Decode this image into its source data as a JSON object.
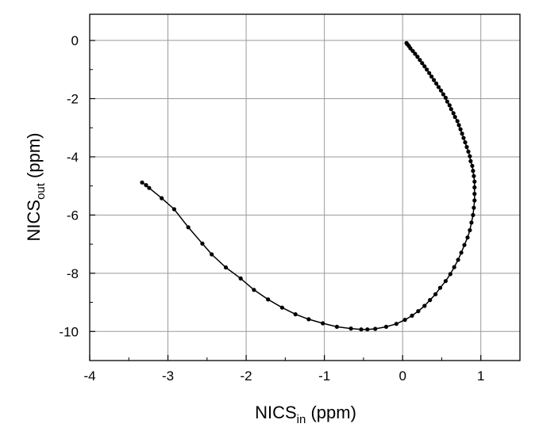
{
  "chart_data": {
    "type": "scatter",
    "title": "",
    "xlabel": {
      "main": "NICS",
      "sub": "in",
      "unit": " (ppm)"
    },
    "ylabel": {
      "main": "NICS",
      "sub": "out",
      "unit": " (ppm)"
    },
    "xlim": [
      -4,
      1.5
    ],
    "ylim": [
      -11,
      0.9
    ],
    "xticks": [
      -4,
      -3,
      -2,
      -1,
      0,
      1
    ],
    "xtick_labels": [
      "-4",
      "-3",
      "-2",
      "-1",
      "0",
      "1"
    ],
    "yticks": [
      0,
      -2,
      -4,
      -6,
      -8,
      -10
    ],
    "ytick_labels": [
      "0",
      "-2",
      "-4",
      "-6",
      "-8",
      "-10"
    ],
    "grid": true,
    "series": [
      {
        "marker": "circle",
        "line": true,
        "color": "#000000",
        "points": [
          [
            -3.33,
            -4.88
          ],
          [
            -3.28,
            -4.97
          ],
          [
            -3.24,
            -5.07
          ],
          [
            -3.08,
            -5.42
          ],
          [
            -2.92,
            -5.8
          ],
          [
            -2.74,
            -6.42
          ],
          [
            -2.56,
            -6.98
          ],
          [
            -2.44,
            -7.35
          ],
          [
            -2.26,
            -7.8
          ],
          [
            -2.07,
            -8.18
          ],
          [
            -1.9,
            -8.57
          ],
          [
            -1.72,
            -8.9
          ],
          [
            -1.54,
            -9.18
          ],
          [
            -1.37,
            -9.41
          ],
          [
            -1.2,
            -9.58
          ],
          [
            -1.02,
            -9.72
          ],
          [
            -0.84,
            -9.84
          ],
          [
            -0.66,
            -9.9
          ],
          [
            -0.53,
            -9.93
          ],
          [
            -0.45,
            -9.93
          ],
          [
            -0.35,
            -9.91
          ],
          [
            -0.21,
            -9.84
          ],
          [
            -0.08,
            -9.74
          ],
          [
            0.03,
            -9.6
          ],
          [
            0.12,
            -9.46
          ],
          [
            0.2,
            -9.3
          ],
          [
            0.28,
            -9.12
          ],
          [
            0.35,
            -8.92
          ],
          [
            0.42,
            -8.72
          ],
          [
            0.48,
            -8.5
          ],
          [
            0.55,
            -8.27
          ],
          [
            0.61,
            -8.03
          ],
          [
            0.66,
            -7.79
          ],
          [
            0.71,
            -7.54
          ],
          [
            0.75,
            -7.29
          ],
          [
            0.79,
            -7.03
          ],
          [
            0.83,
            -6.77
          ],
          [
            0.86,
            -6.52
          ],
          [
            0.88,
            -6.26
          ],
          [
            0.9,
            -6.0
          ],
          [
            0.91,
            -5.75
          ],
          [
            0.92,
            -5.5
          ],
          [
            0.92,
            -5.27
          ],
          [
            0.92,
            -5.05
          ],
          [
            0.92,
            -4.85
          ],
          [
            0.91,
            -4.66
          ],
          [
            0.9,
            -4.48
          ],
          [
            0.89,
            -4.31
          ],
          [
            0.87,
            -4.15
          ],
          [
            0.86,
            -3.98
          ],
          [
            0.84,
            -3.82
          ],
          [
            0.82,
            -3.66
          ],
          [
            0.8,
            -3.5
          ],
          [
            0.78,
            -3.35
          ],
          [
            0.76,
            -3.2
          ],
          [
            0.74,
            -3.05
          ],
          [
            0.72,
            -2.91
          ],
          [
            0.7,
            -2.77
          ],
          [
            0.67,
            -2.63
          ],
          [
            0.65,
            -2.5
          ],
          [
            0.62,
            -2.36
          ],
          [
            0.6,
            -2.23
          ],
          [
            0.57,
            -2.1
          ],
          [
            0.55,
            -1.97
          ],
          [
            0.52,
            -1.85
          ],
          [
            0.49,
            -1.72
          ],
          [
            0.46,
            -1.6
          ],
          [
            0.43,
            -1.48
          ],
          [
            0.4,
            -1.36
          ],
          [
            0.37,
            -1.24
          ],
          [
            0.34,
            -1.12
          ],
          [
            0.31,
            -1.0
          ],
          [
            0.28,
            -0.89
          ],
          [
            0.25,
            -0.78
          ],
          [
            0.22,
            -0.67
          ],
          [
            0.19,
            -0.56
          ],
          [
            0.16,
            -0.46
          ],
          [
            0.13,
            -0.36
          ],
          [
            0.1,
            -0.27
          ],
          [
            0.08,
            -0.19
          ],
          [
            0.06,
            -0.13
          ],
          [
            0.05,
            -0.09
          ]
        ]
      }
    ]
  }
}
